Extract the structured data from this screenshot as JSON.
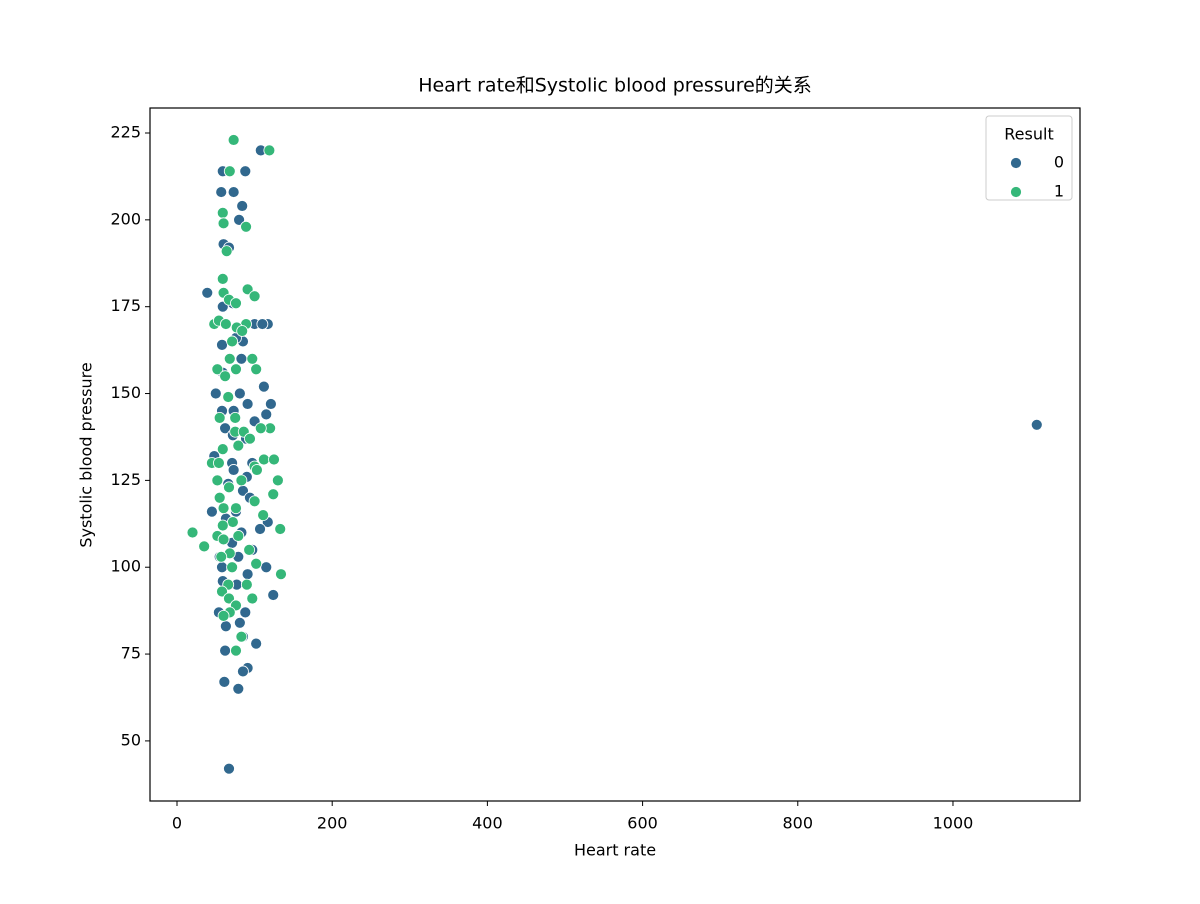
{
  "chart_data": {
    "type": "scatter",
    "title": "Heart rate和Systolic blood pressure的关系",
    "x_label": "Heart rate",
    "y_label": "Systolic blood pressure",
    "legend_title": "Result",
    "legend": "upper right",
    "grid": false,
    "xlim": [
      -34.8,
      1163.7
    ],
    "ylim": [
      32.7,
      232.2
    ],
    "xticks": [
      0,
      200,
      400,
      600,
      800,
      1000
    ],
    "yticks": [
      50,
      75,
      100,
      125,
      150,
      175,
      200,
      225
    ],
    "series": [
      {
        "name": "0",
        "color": "#31688e",
        "x": [
          108,
          59,
          88,
          57,
          73,
          84,
          80,
          60,
          67,
          39,
          59,
          72,
          100,
          117,
          110,
          58,
          85,
          76,
          83,
          59,
          112,
          50,
          81,
          91,
          121,
          58,
          73,
          115,
          1108,
          100,
          62,
          72,
          89,
          48,
          71,
          97,
          73,
          90,
          66,
          85,
          94,
          45,
          76,
          63,
          117,
          107,
          83,
          71,
          97,
          55,
          79,
          115,
          58,
          91,
          59,
          77,
          124,
          54,
          88,
          81,
          63,
          85,
          102,
          62,
          91,
          85,
          61,
          79,
          67
        ],
        "values": [
          220,
          214,
          214,
          208,
          208,
          204,
          200,
          193,
          192,
          179,
          175,
          176,
          170,
          170,
          170,
          164,
          165,
          166,
          160,
          156,
          152,
          150,
          150,
          147,
          147,
          145,
          145,
          144,
          141,
          142,
          140,
          138,
          137,
          132,
          130,
          130,
          128,
          126,
          124,
          122,
          120,
          116,
          116,
          114,
          113,
          111,
          110,
          107,
          105,
          103,
          103,
          100,
          100,
          98,
          96,
          95,
          92,
          87,
          87,
          84,
          83,
          80,
          78,
          76,
          71,
          70,
          67,
          65,
          42
        ]
      },
      {
        "name": "1",
        "color": "#35b779",
        "x": [
          73,
          119,
          68,
          59,
          60,
          89,
          64,
          59,
          91,
          60,
          100,
          67,
          76,
          48,
          54,
          89,
          63,
          77,
          84,
          71,
          68,
          97,
          52,
          76,
          102,
          62,
          66,
          55,
          75,
          120,
          108,
          75,
          86,
          94,
          79,
          59,
          45,
          54,
          112,
          125,
          100,
          103,
          83,
          130,
          52,
          67,
          124,
          55,
          100,
          76,
          60,
          111,
          72,
          59,
          133,
          20,
          52,
          79,
          60,
          35,
          93,
          68,
          57,
          102,
          71,
          134,
          66,
          90,
          58,
          97,
          67,
          76,
          68,
          60,
          83,
          76
        ],
        "values": [
          223,
          220,
          214,
          202,
          199,
          198,
          191,
          183,
          180,
          179,
          178,
          177,
          176,
          170,
          171,
          170,
          170,
          169,
          168,
          165,
          160,
          160,
          157,
          157,
          157,
          155,
          149,
          143,
          143,
          140,
          140,
          139,
          139,
          137,
          135,
          134,
          130,
          130,
          131,
          131,
          129,
          128,
          125,
          125,
          125,
          123,
          121,
          120,
          119,
          117,
          117,
          115,
          113,
          112,
          111,
          110,
          109,
          109,
          108,
          106,
          105,
          104,
          103,
          101,
          100,
          98,
          95,
          95,
          93,
          91,
          91,
          89,
          87,
          86,
          80,
          76
        ]
      }
    ]
  }
}
